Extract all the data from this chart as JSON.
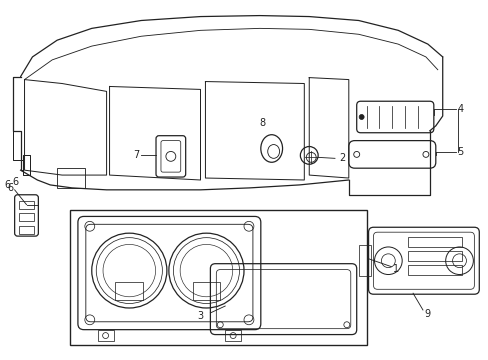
{
  "bg_color": "#ffffff",
  "line_color": "#222222",
  "lw": 0.9,
  "fig_width": 4.89,
  "fig_height": 3.6
}
